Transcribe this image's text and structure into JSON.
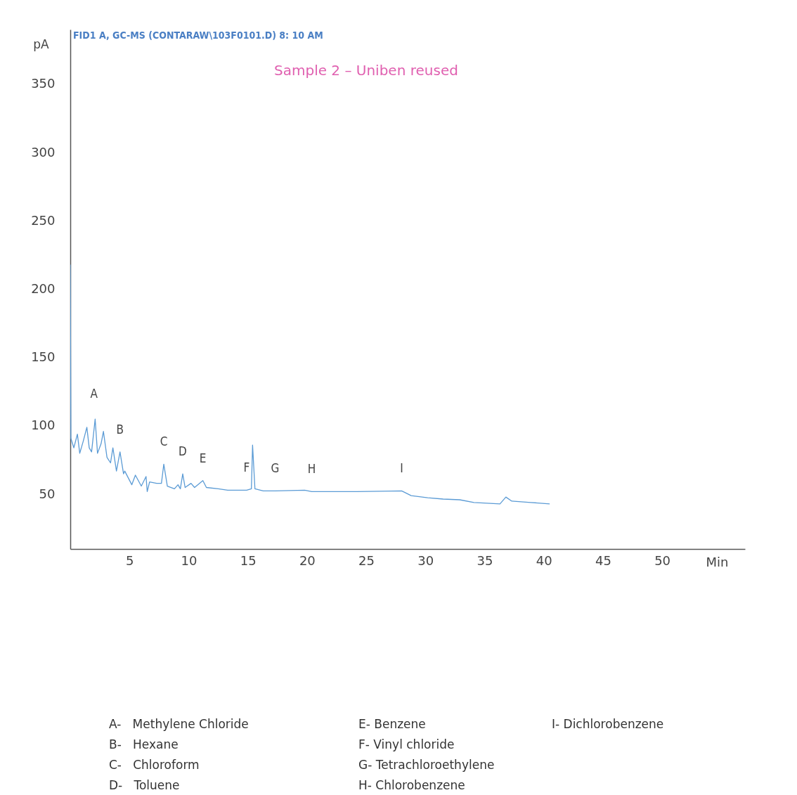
{
  "chart_data": {
    "type": "line",
    "title": "Sample 2 – Uniben reused",
    "subtitle": "FID1 A, GC-MS  (CONTARAW\\103F0101.D) 8: 10 AM",
    "xlabel": "Min",
    "ylabel": "pA",
    "xlim": [
      0,
      57
    ],
    "ylim": [
      10,
      390
    ],
    "xticks": [
      5,
      10,
      15,
      20,
      25,
      30,
      35,
      40,
      45,
      50
    ],
    "yticks": [
      50,
      100,
      150,
      200,
      250,
      300,
      350
    ],
    "series": [
      {
        "color": "#5b9bd5",
        "x": [
          0,
          0.05,
          0.3,
          0.6,
          0.8,
          1.1,
          1.4,
          1.6,
          1.8,
          2.1,
          2.3,
          2.6,
          2.8,
          3.1,
          3.4,
          3.6,
          3.9,
          4.2,
          4.5,
          4.6,
          5.2,
          5.5,
          6.0,
          6.4,
          6.5,
          6.7,
          7.3,
          7.7,
          7.9,
          8.2,
          8.8,
          9.1,
          9.3,
          9.5,
          9.7,
          10.2,
          10.5,
          11.2,
          11.5,
          12.5,
          13.3,
          14.9,
          15.3,
          15.4,
          15.6,
          16.3,
          17.3,
          19.8,
          20.4,
          24.2,
          28.0,
          28.8,
          30.2,
          31.5,
          32.9,
          34.1,
          36.3,
          36.8,
          37.3,
          38.9,
          40.5
        ],
        "values": [
          218,
          91,
          84,
          94,
          80,
          89,
          99,
          84,
          81,
          105,
          80,
          87,
          96,
          77,
          73,
          84,
          67,
          81,
          65,
          67,
          57,
          64,
          56,
          63,
          52,
          59,
          58,
          58,
          72,
          56,
          54,
          57,
          54,
          65,
          55,
          58,
          55,
          60,
          55,
          54,
          53,
          53,
          54,
          86,
          54,
          52.5,
          52.5,
          53,
          52,
          52,
          52.5,
          49,
          47.5,
          46.5,
          46,
          44,
          43,
          48,
          45,
          44,
          43
        ]
      }
    ],
    "annotations": [
      {
        "text": "A",
        "x": 2.0,
        "y": 107
      },
      {
        "text": "B",
        "x": 4.2,
        "y": 81
      },
      {
        "text": "C",
        "x": 7.9,
        "y": 72
      },
      {
        "text": "D",
        "x": 9.5,
        "y": 65
      },
      {
        "text": "E",
        "x": 11.2,
        "y": 60
      },
      {
        "text": "F",
        "x": 14.9,
        "y": 53
      },
      {
        "text": "G",
        "x": 17.3,
        "y": 52.5
      },
      {
        "text": "H",
        "x": 20.4,
        "y": 52
      },
      {
        "text": "I",
        "x": 28.0,
        "y": 52.5
      },
      "A-   Methylene Chloride",
      "B-   Hexane",
      "C-   Chloroform",
      "D-   Toluene",
      "E- Benzene",
      "F- Vinyl chloride",
      "G- Tetrachloroethylene",
      "H- Chlorobenzene",
      "I- Dichlorobenzene"
    ]
  }
}
